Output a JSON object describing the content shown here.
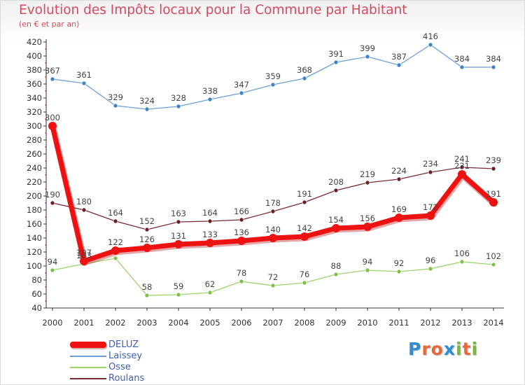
{
  "header": {
    "title": "Evolution des Impôts locaux pour la Commune par Habitant",
    "subtitle": "(en € et par an)"
  },
  "logo": {
    "text": "Proxiti",
    "letter_colors": [
      "#2f8fd4",
      "#e8683a",
      "#e8683a",
      "#2f8fd4",
      "#7ab83a",
      "#e8683a",
      "#7ab83a"
    ]
  },
  "colors": {
    "title": "#d54a5e",
    "axis": "#333333",
    "grid": "#cccccc",
    "axis_dots": "#d54a5e",
    "legend_text": "#3f5fb0"
  },
  "chart_data": {
    "type": "line",
    "title": "Evolution des Impôts locaux pour la Commune par Habitant",
    "subtitle": "(en € et par an)",
    "xlabel": "",
    "ylabel": "",
    "ylim": [
      40,
      420
    ],
    "ytick_step": 20,
    "grid": false,
    "legend_position": "bottom-left",
    "categories": [
      "2000",
      "2001",
      "2002",
      "2003",
      "2004",
      "2005",
      "2006",
      "2007",
      "2008",
      "2009",
      "2010",
      "2011",
      "2012",
      "2013",
      "2014"
    ],
    "series": [
      {
        "name": "Laissey",
        "color": "#6d9fd4",
        "marker": "#3e86c6",
        "emphasis": false,
        "values": [
          367,
          361,
          329,
          324,
          328,
          338,
          347,
          359,
          368,
          391,
          399,
          387,
          416,
          384,
          384
        ]
      },
      {
        "name": "Osse",
        "color": "#9cd36b",
        "marker": "#7fc24a",
        "emphasis": false,
        "values": [
          94,
          103,
          111,
          58,
          59,
          62,
          78,
          72,
          76,
          88,
          94,
          92,
          96,
          106,
          102
        ]
      },
      {
        "name": "Roulans",
        "color": "#7a2a32",
        "marker": "#6a1f27",
        "emphasis": false,
        "values": [
          190,
          180,
          164,
          152,
          163,
          164,
          166,
          178,
          191,
          208,
          219,
          224,
          234,
          241,
          239
        ]
      },
      {
        "name": "DELUZ",
        "color": "#ee1111",
        "marker": "#ee1111",
        "emphasis": true,
        "values": [
          300,
          107,
          122,
          126,
          131,
          133,
          136,
          140,
          142,
          154,
          156,
          169,
          172,
          231,
          191
        ]
      }
    ],
    "legend_order": [
      "DELUZ",
      "Laissey",
      "Osse",
      "Roulans"
    ],
    "point_labels": {
      "Laissey": [
        "367",
        "361",
        "329",
        "324",
        "328",
        "338",
        "347",
        "359",
        "368",
        "391",
        "399",
        "387",
        "416",
        "384",
        "384"
      ],
      "Osse": [
        "94",
        "103",
        "",
        "58",
        "59",
        "62",
        "78",
        "72",
        "76",
        "88",
        "94",
        "92",
        "96",
        "106",
        "102"
      ],
      "Roulans": [
        "190",
        "180",
        "164",
        "152",
        "163",
        "164",
        "166",
        "178",
        "191",
        "208",
        "219",
        "224",
        "234",
        "241",
        "239"
      ],
      "DELUZ": [
        "300",
        "107",
        "122",
        "126",
        "131",
        "133",
        "136",
        "140",
        "142",
        "154",
        "156",
        "169",
        "172",
        "231",
        "191"
      ]
    }
  }
}
